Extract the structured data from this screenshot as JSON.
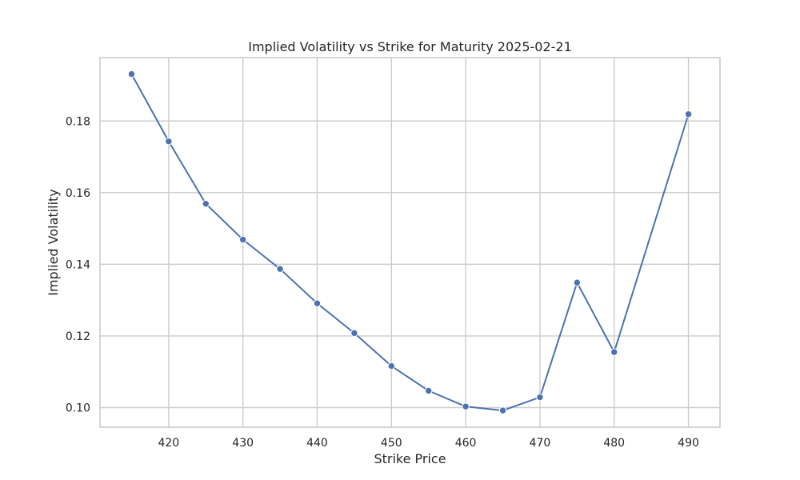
{
  "chart_data": {
    "type": "line",
    "title": "Implied Volatility vs Strike for Maturity 2025-02-21",
    "xlabel": "Strike Price",
    "ylabel": "Implied Volatility",
    "x": [
      415,
      420,
      425,
      430,
      435,
      440,
      445,
      450,
      455,
      460,
      465,
      470,
      475,
      480,
      490
    ],
    "series": [
      {
        "values": [
          0.1931,
          0.1743,
          0.1569,
          0.1469,
          0.1387,
          0.1291,
          0.1208,
          0.1116,
          0.1047,
          0.1003,
          0.0992,
          0.1029,
          0.1349,
          0.1155,
          0.1819
        ],
        "color": "#4c72b0",
        "marker": "circle"
      }
    ],
    "xlim": [
      410.75,
      494.25
    ],
    "ylim": [
      0.09453,
      0.1977
    ],
    "xticks": [
      420,
      430,
      440,
      450,
      460,
      470,
      480,
      490
    ],
    "xtick_labels": [
      "420",
      "430",
      "440",
      "450",
      "460",
      "470",
      "480",
      "490"
    ],
    "yticks": [
      0.1,
      0.12,
      0.14,
      0.16,
      0.18
    ],
    "ytick_labels": [
      "0.10",
      "0.12",
      "0.14",
      "0.16",
      "0.18"
    ],
    "grid": true,
    "legend": "none"
  }
}
